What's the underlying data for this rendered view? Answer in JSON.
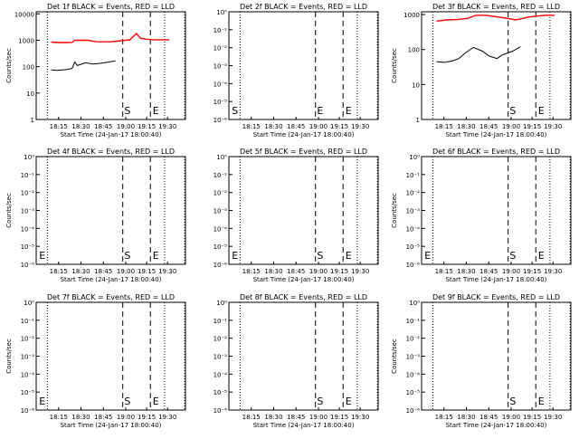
{
  "chart_data": [
    {
      "type": "line",
      "detector": "1f",
      "title": "Det 1f BLACK = Events, RED = LLD",
      "xlabel": "Start Time (24-Jan-17 18:00:40)",
      "ylabel": "Counts/sec",
      "xticks": [
        "18:15",
        "18:30",
        "18:45",
        "19:00",
        "19:15",
        "19:30"
      ],
      "yscale": "log",
      "ylim": [
        1,
        12000
      ],
      "yticks": [
        "1",
        "10",
        "100",
        "1000",
        "10000"
      ],
      "markers": [
        "S",
        "E"
      ],
      "series": [
        {
          "color": "#000000",
          "x": [
            0.0,
            0.05,
            0.12,
            0.16,
            0.18,
            0.2,
            0.26,
            0.32,
            0.38,
            0.44,
            0.49
          ],
          "values": [
            75,
            72,
            78,
            85,
            150,
            110,
            140,
            125,
            135,
            150,
            165
          ]
        },
        {
          "color": "#ff0000",
          "x": [
            0.0,
            0.06,
            0.12,
            0.16,
            0.18,
            0.28,
            0.34,
            0.4,
            0.46,
            0.5,
            0.6,
            0.65,
            0.68,
            0.72,
            0.78,
            0.84,
            0.9
          ],
          "values": [
            850,
            820,
            820,
            830,
            1000,
            1000,
            880,
            870,
            880,
            920,
            1050,
            1800,
            1200,
            1100,
            1050,
            1050,
            1050
          ]
        }
      ]
    },
    {
      "type": "line",
      "detector": "2f",
      "title": "Det 2f BLACK = Events, RED = LLD",
      "xlabel": "Start Time (24-Jan-17 18:00:40)",
      "ylabel": "",
      "xticks": [
        "18:15",
        "18:30",
        "18:45",
        "19:00",
        "19:15",
        "19:30"
      ],
      "yscale": "log",
      "ylim": [
        1,
        1e-06
      ],
      "yticks": [
        "10⁻⁶",
        "10⁻⁵",
        "10⁻⁴",
        "10⁻³",
        "10⁻²",
        "10⁻¹",
        "10⁰"
      ],
      "markers": [
        "S",
        "E",
        "E"
      ],
      "series": []
    },
    {
      "type": "line",
      "detector": "3f",
      "title": "Det 3f BLACK = Events, RED = LLD",
      "xlabel": "Start Time (24-Jan-17 18:00:40)",
      "ylabel": "Counts/sec",
      "xticks": [
        "18:15",
        "18:30",
        "18:45",
        "19:00",
        "19:15",
        "19:30"
      ],
      "yscale": "log",
      "ylim": [
        1,
        1200
      ],
      "yticks": [
        "1",
        "10",
        "100",
        "1000"
      ],
      "markers": [
        "S",
        "E"
      ],
      "series": [
        {
          "color": "#000000",
          "x": [
            0.0,
            0.06,
            0.12,
            0.17,
            0.22,
            0.28,
            0.35,
            0.4,
            0.46,
            0.5,
            0.58,
            0.64
          ],
          "values": [
            45,
            43,
            47,
            55,
            80,
            115,
            90,
            65,
            55,
            70,
            90,
            120
          ]
        },
        {
          "color": "#ff0000",
          "x": [
            0.0,
            0.08,
            0.16,
            0.24,
            0.3,
            0.38,
            0.44,
            0.5,
            0.56,
            0.6,
            0.64,
            0.7,
            0.76,
            0.82,
            0.9
          ],
          "values": [
            650,
            700,
            720,
            780,
            950,
            950,
            880,
            820,
            760,
            700,
            750,
            850,
            900,
            950,
            950
          ]
        }
      ]
    },
    {
      "type": "line",
      "detector": "4f",
      "title": "Det 4f BLACK = Events, RED = LLD",
      "xlabel": "Start Time (24-Jan-17 18:00:40)",
      "ylabel": "Counts/sec",
      "xticks": [
        "18:15",
        "18:30",
        "18:45",
        "19:00",
        "19:15",
        "19:30"
      ],
      "yscale": "log",
      "ylim": [
        1,
        1e-06
      ],
      "yticks": [
        "10⁻⁶",
        "10⁻⁵",
        "10⁻⁴",
        "10⁻³",
        "10⁻²",
        "10⁻¹",
        "10⁰"
      ],
      "markers": [
        "E",
        "S",
        "E"
      ],
      "series": []
    },
    {
      "type": "line",
      "detector": "5f",
      "title": "Det 5f BLACK = Events, RED = LLD",
      "xlabel": "Start Time (24-Jan-17 18:00:40)",
      "ylabel": "",
      "xticks": [
        "18:15",
        "18:30",
        "18:45",
        "19:00",
        "19:15",
        "19:30"
      ],
      "yscale": "log",
      "ylim": [
        1,
        1e-06
      ],
      "yticks": [
        "10⁻⁶",
        "10⁻⁵",
        "10⁻⁴",
        "10⁻³",
        "10⁻²",
        "10⁻¹",
        "10⁰"
      ],
      "markers": [
        "E",
        "S",
        "E"
      ],
      "series": []
    },
    {
      "type": "line",
      "detector": "6f",
      "title": "Det 6f BLACK = Events, RED = LLD",
      "xlabel": "Start Time (24-Jan-17 18:00:40)",
      "ylabel": "Counts/sec",
      "xticks": [
        "18:15",
        "18:30",
        "18:45",
        "19:00",
        "19:15",
        "19:30"
      ],
      "yscale": "log",
      "ylim": [
        1,
        1e-06
      ],
      "yticks": [
        "10⁻⁶",
        "10⁻⁵",
        "10⁻⁴",
        "10⁻³",
        "10⁻²",
        "10⁻¹",
        "10⁰"
      ],
      "markers": [
        "E",
        "S",
        "E"
      ],
      "series": []
    },
    {
      "type": "line",
      "detector": "7f",
      "title": "Det 7f BLACK = Events, RED = LLD",
      "xlabel": "Start Time (24-Jan-17 18:00:40)",
      "ylabel": "Counts/sec",
      "xticks": [
        "18:15",
        "18:30",
        "18:45",
        "19:00",
        "19:15",
        "19:30"
      ],
      "yscale": "log",
      "ylim": [
        1,
        1e-06
      ],
      "yticks": [
        "10⁻⁶",
        "10⁻⁵",
        "10⁻⁴",
        "10⁻³",
        "10⁻²",
        "10⁻¹",
        "10⁰"
      ],
      "markers": [
        "E",
        "S",
        "E"
      ],
      "series": []
    },
    {
      "type": "line",
      "detector": "8f",
      "title": "Det 8f BLACK = Events, RED = LLD",
      "xlabel": "Start Time (24-Jan-17 18:00:40)",
      "ylabel": "",
      "xticks": [
        "18:15",
        "18:30",
        "18:45",
        "19:00",
        "19:15",
        "19:30"
      ],
      "yscale": "log",
      "ylim": [
        1,
        1e-06
      ],
      "yticks": [
        "10⁻⁶",
        "10⁻⁵",
        "10⁻⁴",
        "10⁻³",
        "10⁻²",
        "10⁻¹",
        "10⁰"
      ],
      "markers": [
        "S",
        "E"
      ],
      "series": []
    },
    {
      "type": "line",
      "detector": "9f",
      "title": "Det 9f BLACK = Events, RED = LLD",
      "xlabel": "Start Time (24-Jan-17 18:00:40)",
      "ylabel": "Counts/sec",
      "xticks": [
        "18:15",
        "18:30",
        "18:45",
        "19:00",
        "19:15",
        "19:30"
      ],
      "yscale": "log",
      "ylim": [
        1,
        1e-06
      ],
      "yticks": [
        "10⁻⁶",
        "10⁻⁵",
        "10⁻⁴",
        "10⁻³",
        "10⁻²",
        "10⁻¹",
        "10⁰"
      ],
      "markers": [
        "S",
        "E"
      ],
      "series": []
    }
  ]
}
